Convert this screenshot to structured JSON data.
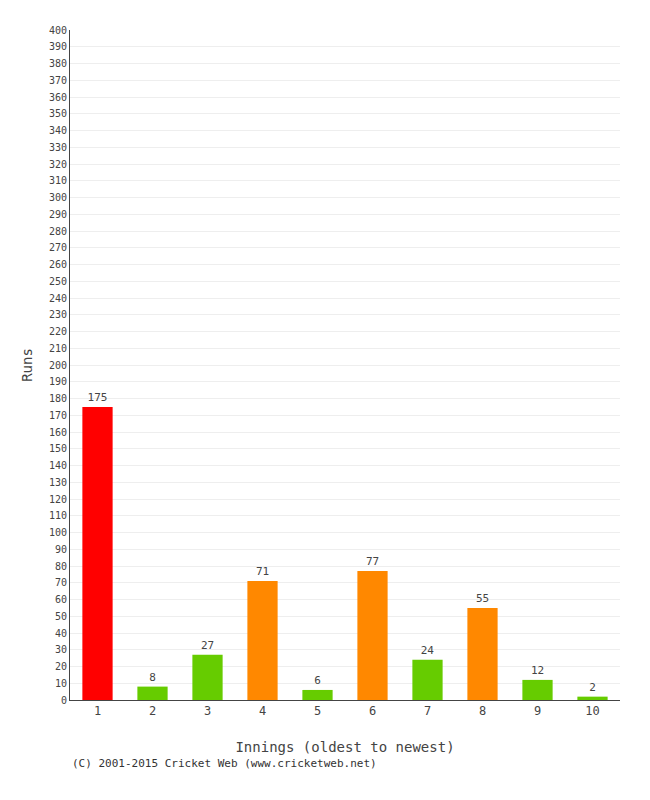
{
  "chart_data": {
    "type": "bar",
    "xlabel": "Innings (oldest to newest)",
    "ylabel": "Runs",
    "categories": [
      "1",
      "2",
      "3",
      "4",
      "5",
      "6",
      "7",
      "8",
      "9",
      "10"
    ],
    "values": [
      175,
      8,
      27,
      71,
      6,
      77,
      24,
      55,
      12,
      2
    ],
    "colors": [
      "#ff0000",
      "#66cc00",
      "#66cc00",
      "#ff8800",
      "#66cc00",
      "#ff8800",
      "#66cc00",
      "#ff8800",
      "#66cc00",
      "#66cc00"
    ],
    "ylim": [
      0,
      400
    ],
    "yticks": [
      0,
      10,
      20,
      30,
      40,
      50,
      60,
      70,
      80,
      90,
      100,
      110,
      120,
      130,
      140,
      150,
      160,
      170,
      180,
      190,
      200,
      210,
      220,
      230,
      240,
      250,
      260,
      270,
      280,
      290,
      300,
      310,
      320,
      330,
      340,
      350,
      360,
      370,
      380,
      390,
      400
    ],
    "grid": true,
    "data_labels": true,
    "footer": "(C) 2001-2015 Cricket Web (www.cricketweb.net)"
  }
}
